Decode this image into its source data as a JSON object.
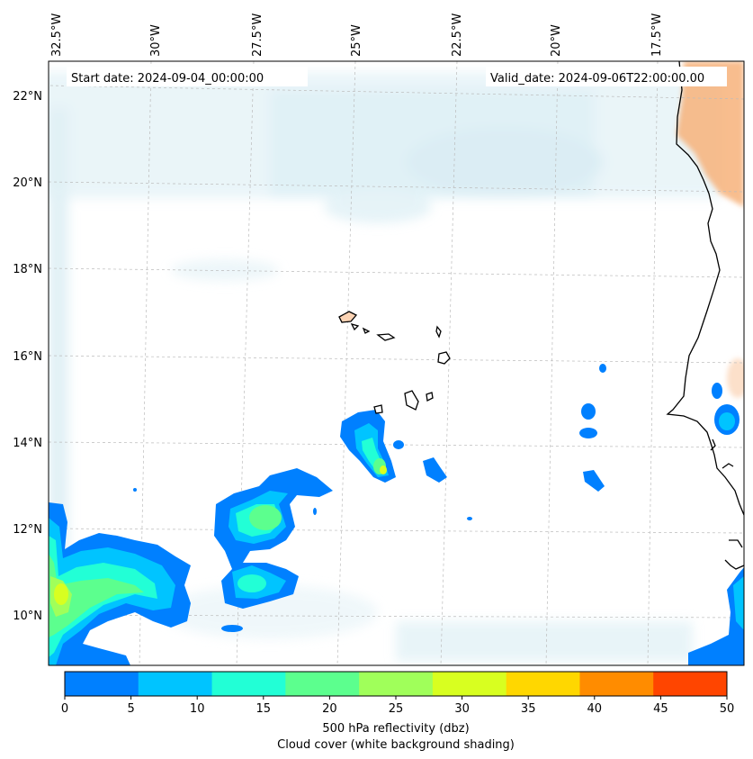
{
  "header": {
    "start_date": "Start date: 2024-09-04_00:00:00",
    "valid_date": "Valid_date: 2024-09-06T22:00:00.00"
  },
  "axes": {
    "lon_labels": [
      "32.5°W",
      "30°W",
      "27.5°W",
      "25°W",
      "22.5°W",
      "20°W",
      "17.5°W"
    ],
    "lat_labels": [
      "22°N",
      "20°N",
      "18°N",
      "16°N",
      "14°N",
      "12°N",
      "10°N"
    ]
  },
  "colorbar": {
    "ticks": [
      "0",
      "5",
      "10",
      "15",
      "20",
      "25",
      "30",
      "35",
      "40",
      "45",
      "50"
    ],
    "colors": [
      "#0080ff",
      "#00c4ff",
      "#22ffd6",
      "#5cff8e",
      "#a0ff5a",
      "#d8ff20",
      "#ffd700",
      "#ff8c00",
      "#ff4500"
    ],
    "label_line1": "500 hPa reflectivity (dbz)",
    "label_line2": "Cloud cover (white background shading)"
  },
  "colors": {
    "cloud": "#add8e6",
    "land": "#f4a460"
  }
}
